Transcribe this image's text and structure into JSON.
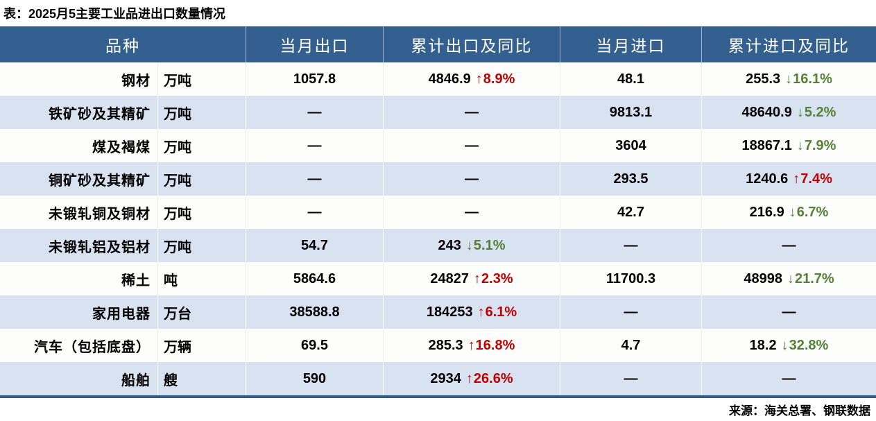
{
  "title": "表：2025月5主要工业品进出口数量情况",
  "source": "来源：海关总署、钢联数据",
  "colors": {
    "header_bg": "#33608F",
    "row_alt_bg": "#D9E2F0",
    "row_bg": "#FDFDFB",
    "up_red": "#C00000",
    "down_green": "#538135",
    "bottom_border": "#2E5A87"
  },
  "table": {
    "headers": [
      "品种",
      "当月出口",
      "累计出口及同比",
      "当月进口",
      "累计进口及同比"
    ],
    "rows": [
      {
        "name": "钢材",
        "unit": "万吨",
        "export_month": "1057.8",
        "export_cum": {
          "value": "4846.9",
          "arrow": "↑",
          "pct": "8.9%",
          "trend": "up"
        },
        "import_month": "48.1",
        "import_cum": {
          "value": "255.3",
          "arrow": "↓",
          "pct": "16.1%",
          "trend": "down"
        }
      },
      {
        "name": "铁矿砂及其精矿",
        "unit": "万吨",
        "export_month": "—",
        "export_cum": {
          "value": "—",
          "arrow": "",
          "pct": "",
          "trend": "flat"
        },
        "import_month": "9813.1",
        "import_cum": {
          "value": "48640.9",
          "arrow": "↓",
          "pct": "5.2%",
          "trend": "down"
        }
      },
      {
        "name": "煤及褐煤",
        "unit": "万吨",
        "export_month": "—",
        "export_cum": {
          "value": "—",
          "arrow": "",
          "pct": "",
          "trend": "flat"
        },
        "import_month": "3604",
        "import_cum": {
          "value": "18867.1",
          "arrow": "↓",
          "pct": "7.9%",
          "trend": "down"
        }
      },
      {
        "name": "铜矿砂及其精矿",
        "unit": "万吨",
        "export_month": "—",
        "export_cum": {
          "value": "—",
          "arrow": "",
          "pct": "",
          "trend": "flat"
        },
        "import_month": "293.5",
        "import_cum": {
          "value": "1240.6",
          "arrow": "↑",
          "pct": "7.4%",
          "trend": "up"
        }
      },
      {
        "name": "未锻轧铜及铜材",
        "unit": "万吨",
        "export_month": "—",
        "export_cum": {
          "value": "—",
          "arrow": "",
          "pct": "",
          "trend": "flat"
        },
        "import_month": "42.7",
        "import_cum": {
          "value": "216.9",
          "arrow": "↓",
          "pct": "6.7%",
          "trend": "down"
        }
      },
      {
        "name": "未锻轧铝及铝材",
        "unit": "万吨",
        "export_month": "54.7",
        "export_cum": {
          "value": "243",
          "arrow": "↓",
          "pct": "5.1%",
          "trend": "down"
        },
        "import_month": "—",
        "import_cum": {
          "value": "—",
          "arrow": "",
          "pct": "",
          "trend": "flat"
        }
      },
      {
        "name": "稀土",
        "unit": "吨",
        "export_month": "5864.6",
        "export_cum": {
          "value": "24827",
          "arrow": "↑",
          "pct": "2.3%",
          "trend": "up"
        },
        "import_month": "11700.3",
        "import_cum": {
          "value": "48998",
          "arrow": "↓",
          "pct": "21.7%",
          "trend": "down"
        }
      },
      {
        "name": "家用电器",
        "unit": "万台",
        "export_month": "38588.8",
        "export_cum": {
          "value": "184253",
          "arrow": "↑",
          "pct": "6.1%",
          "trend": "up"
        },
        "import_month": "—",
        "import_cum": {
          "value": "—",
          "arrow": "",
          "pct": "",
          "trend": "flat"
        }
      },
      {
        "name": "汽车（包括底盘）",
        "unit": "万辆",
        "export_month": "69.5",
        "export_cum": {
          "value": "285.3",
          "arrow": "↑",
          "pct": "16.8%",
          "trend": "up"
        },
        "import_month": "4.7",
        "import_cum": {
          "value": "18.2",
          "arrow": "↓",
          "pct": "32.8%",
          "trend": "down"
        }
      },
      {
        "name": "船舶",
        "unit": "艘",
        "export_month": "590",
        "export_cum": {
          "value": "2934",
          "arrow": "↑",
          "pct": "26.6%",
          "trend": "up"
        },
        "import_month": "—",
        "import_cum": {
          "value": "—",
          "arrow": "",
          "pct": "",
          "trend": "flat"
        }
      }
    ]
  },
  "chart_data": {
    "type": "table",
    "title": "表：2025月5主要工业品进出口数量情况",
    "columns": [
      "品种",
      "单位",
      "当月出口",
      "累计出口及同比",
      "当月进口",
      "累计进口及同比"
    ],
    "rows": [
      [
        "钢材",
        "万吨",
        "1057.8",
        "4846.9 ↑8.9%",
        "48.1",
        "255.3 ↓16.1%"
      ],
      [
        "铁矿砂及其精矿",
        "万吨",
        "—",
        "—",
        "9813.1",
        "48640.9 ↓5.2%"
      ],
      [
        "煤及褐煤",
        "万吨",
        "—",
        "—",
        "3604",
        "18867.1 ↓7.9%"
      ],
      [
        "铜矿砂及其精矿",
        "万吨",
        "—",
        "—",
        "293.5",
        "1240.6 ↑7.4%"
      ],
      [
        "未锻轧铜及铜材",
        "万吨",
        "—",
        "—",
        "42.7",
        "216.9 ↓6.7%"
      ],
      [
        "未锻轧铝及铝材",
        "万吨",
        "54.7",
        "243 ↓5.1%",
        "—",
        "—"
      ],
      [
        "稀土",
        "吨",
        "5864.6",
        "24827 ↑2.3%",
        "11700.3",
        "48998 ↓21.7%"
      ],
      [
        "家用电器",
        "万台",
        "38588.8",
        "184253 ↑6.1%",
        "—",
        "—"
      ],
      [
        "汽车（包括底盘）",
        "万辆",
        "69.5",
        "285.3 ↑16.8%",
        "4.7",
        "18.2 ↓32.8%"
      ],
      [
        "船舶",
        "艘",
        "590",
        "2934 ↑26.6%",
        "—",
        "—"
      ]
    ],
    "source": "来源：海关总署、钢联数据",
    "legend_position": "none",
    "grid": "row-stripes"
  }
}
